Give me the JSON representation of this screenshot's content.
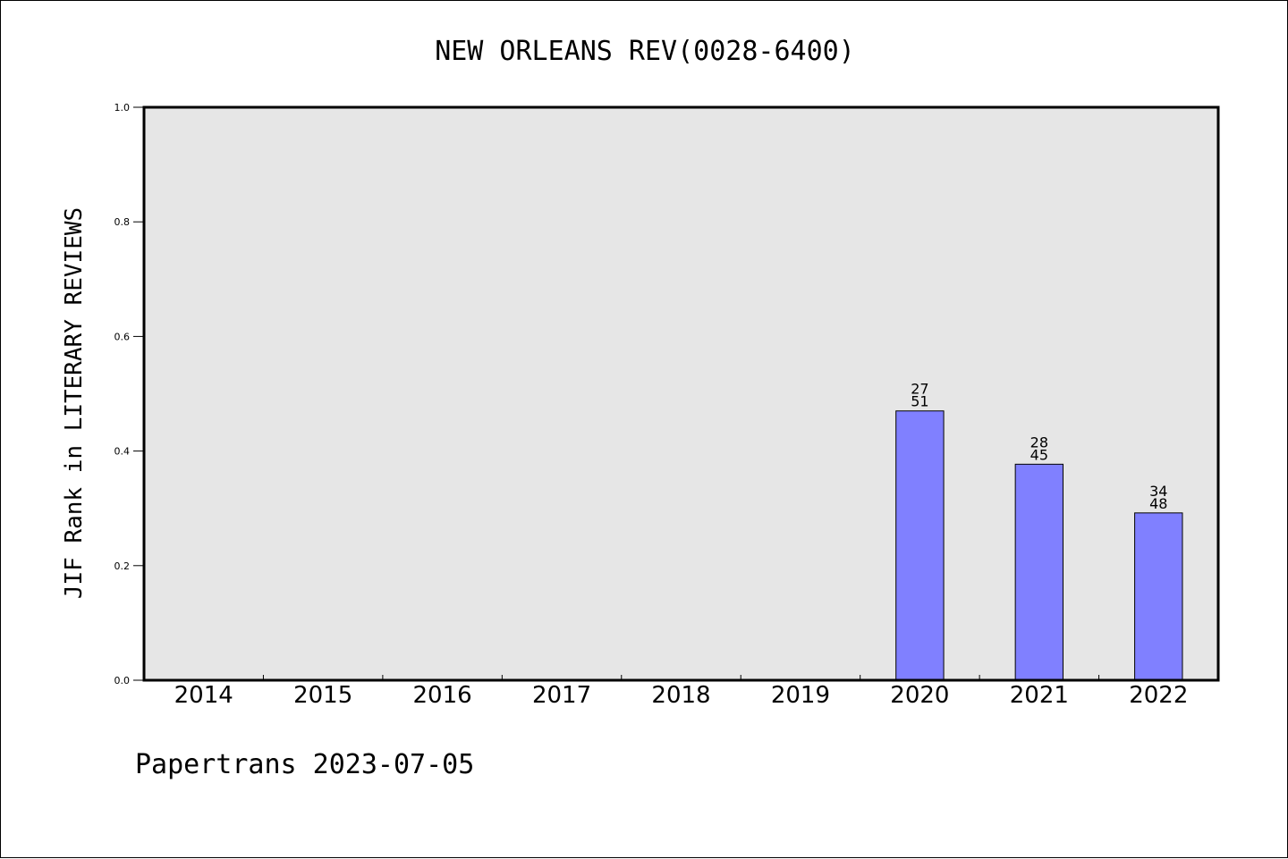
{
  "chart_data": {
    "type": "bar",
    "title": "NEW ORLEANS REV(0028-6400)",
    "xlabel": "",
    "ylabel": "JIF Rank in LITERARY REVIEWS",
    "footer": "Papertrans 2023-07-05",
    "categories": [
      "2014",
      "2015",
      "2016",
      "2017",
      "2018",
      "2019",
      "2020",
      "2021",
      "2022"
    ],
    "values": [
      null,
      null,
      null,
      null,
      null,
      null,
      0.47,
      0.377,
      0.292
    ],
    "bar_labels": [
      null,
      null,
      null,
      null,
      null,
      null,
      {
        "rank": "27",
        "total": "51"
      },
      {
        "rank": "28",
        "total": "45"
      },
      {
        "rank": "34",
        "total": "48"
      }
    ],
    "ylim": [
      0,
      1.0
    ],
    "yticks": [
      "0.0",
      "0.2",
      "0.4",
      "0.6",
      "0.8",
      "1.0"
    ],
    "colors": {
      "bar": "#8080ff",
      "plot_background": "#e6e6e6"
    },
    "grid": false
  }
}
